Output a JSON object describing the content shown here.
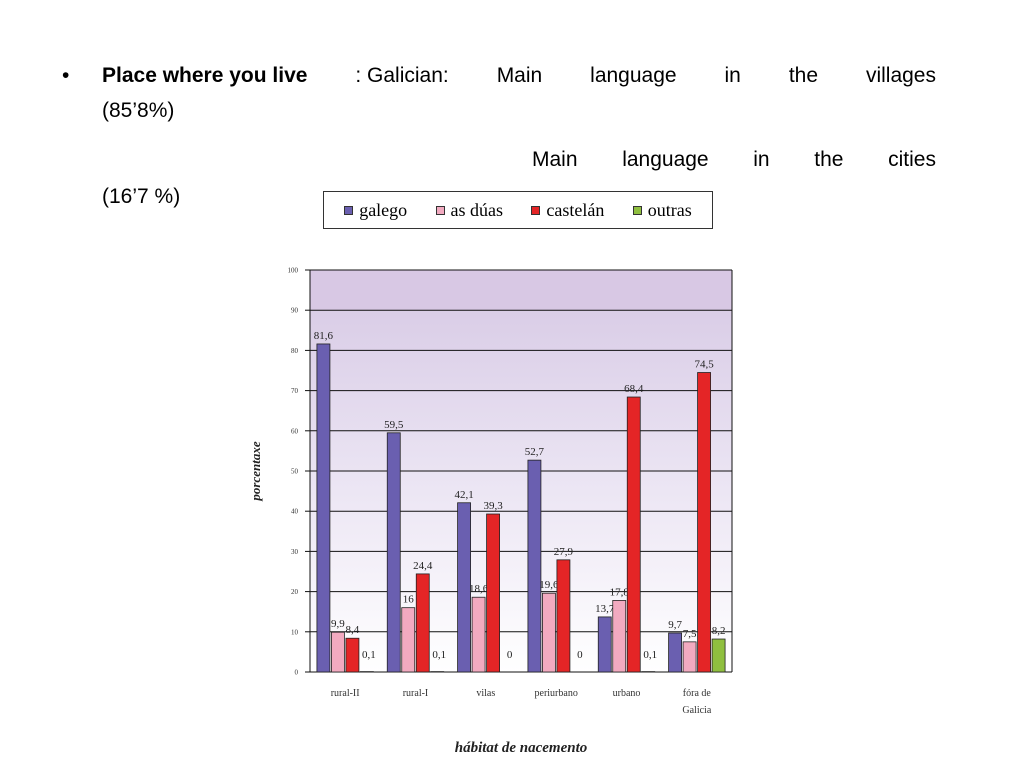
{
  "text": {
    "bullet": "•",
    "line1_bold": "Place where you live",
    "line1_words": [
      ": Galician:",
      "Main",
      "language",
      "in",
      "the",
      "villages"
    ],
    "line1b": "(85’8%)",
    "line2_words": [
      "Main",
      "language",
      "in",
      "the",
      "cities"
    ],
    "line3": "(16’7 %)"
  },
  "chart_data": {
    "type": "bar",
    "title": "",
    "xlabel": "hábitat de nacemento",
    "ylabel": "porcentaxe",
    "ylim": [
      0,
      100
    ],
    "yticks": [
      0,
      10,
      20,
      30,
      40,
      50,
      60,
      70,
      80,
      90,
      100
    ],
    "grid": true,
    "legend_position": "top",
    "categories": [
      "rural-II",
      "rural-I",
      "vilas",
      "periurbano",
      "urbano",
      "fóra de Galicia"
    ],
    "category_lines": [
      [
        "rural-II"
      ],
      [
        "rural-I"
      ],
      [
        "vilas"
      ],
      [
        "periurbano"
      ],
      [
        "urbano"
      ],
      [
        "fóra de",
        "Galicia"
      ]
    ],
    "series": [
      {
        "name": "galego",
        "color": "#6a5fb0",
        "values": [
          81.6,
          59.5,
          42.1,
          52.7,
          13.7,
          9.7
        ],
        "labels": [
          "81,6",
          "59,5",
          "42,1",
          "52,7",
          "13,7",
          "9,7"
        ]
      },
      {
        "name": "as dúas",
        "color": "#f2aac0",
        "values": [
          9.9,
          16,
          18.6,
          19.6,
          17.8,
          7.5
        ],
        "labels": [
          "9,9",
          "16",
          "18,6",
          "19,6",
          "17,8",
          "7,5"
        ]
      },
      {
        "name": "castelán",
        "color": "#e42526",
        "values": [
          8.4,
          24.4,
          39.3,
          27.9,
          68.4,
          74.5
        ],
        "labels": [
          "8,4",
          "24,4",
          "39,3",
          "27,9",
          "68,4",
          "74,5"
        ]
      },
      {
        "name": "outras",
        "color": "#8fbf3f",
        "values": [
          0.1,
          0.1,
          0,
          0,
          0.1,
          8.2
        ],
        "labels": [
          "0,1",
          "0,1",
          "0",
          "0",
          "0,1",
          "8,2"
        ]
      }
    ]
  }
}
